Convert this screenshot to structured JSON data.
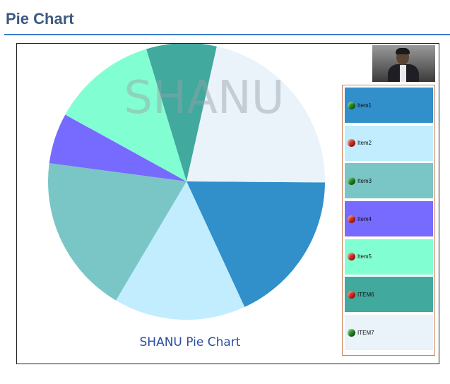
{
  "header": {
    "title": "Pie Chart"
  },
  "chart_data": {
    "type": "pie",
    "title": "SHANU Pie Chart",
    "watermark": "SHANU",
    "categories": [
      "Item1",
      "Item2",
      "Item3",
      "Item4",
      "Item5",
      "ITEM6",
      "ITEM7"
    ],
    "values": [
      18.0,
      15.4,
      18.6,
      5.9,
      12.3,
      8.2,
      21.6
    ],
    "colors": [
      "#318FCA",
      "#C1EDFF",
      "#7AC6C6",
      "#776AFF",
      "#82FFD2",
      "#41A99E",
      "#EAF2FA"
    ],
    "legend": {
      "placement": "right",
      "status": [
        "up",
        "down",
        "up",
        "down",
        "down",
        "down",
        "up"
      ],
      "status_colors": {
        "up": "#1f8a1f",
        "down": "#d42a1a"
      }
    }
  }
}
